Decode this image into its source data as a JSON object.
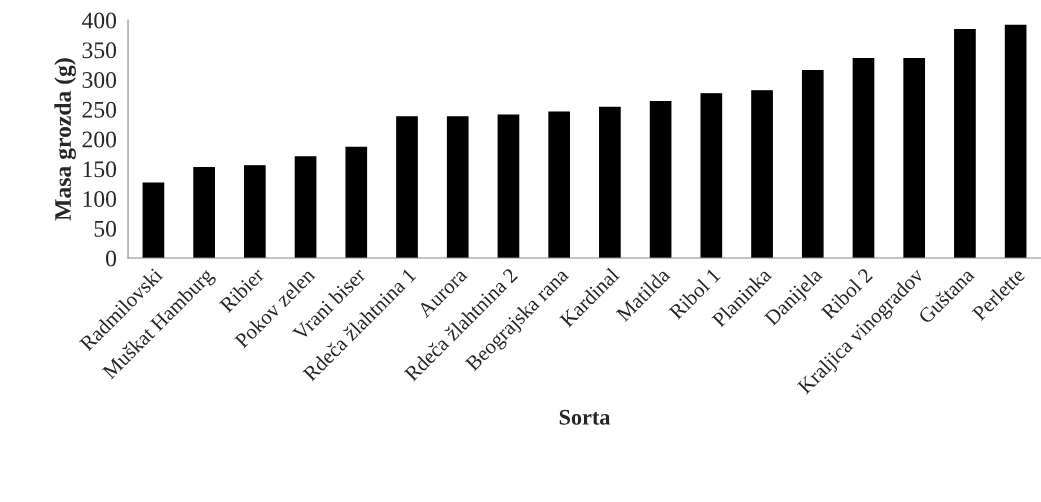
{
  "chart_data": {
    "type": "bar",
    "xlabel": "Sorta",
    "ylabel": "Masa grozda (g)",
    "categories": [
      "Radmilovski",
      "Muškat Hamburg",
      "Ribier",
      "Pokov zelen",
      "Vrani biser",
      "Rdeča žlahtnina 1",
      "Aurora",
      "Rdeča žlahtnina 2",
      "Beograjska rana",
      "Kardinal",
      "Matilda",
      "Ribol 1",
      "Planinka",
      "Danijela",
      "Ribol 2",
      "Kraljica vinogradov",
      "Guštana",
      "Perlette"
    ],
    "values": [
      126,
      152,
      155,
      170,
      186,
      237,
      237,
      240,
      245,
      253,
      263,
      276,
      281,
      315,
      335,
      335,
      384,
      391
    ],
    "color": "#000000",
    "ylim": [
      0,
      400
    ],
    "yticks": [
      0,
      50,
      100,
      150,
      200,
      250,
      300,
      350,
      400
    ],
    "grid": false
  }
}
